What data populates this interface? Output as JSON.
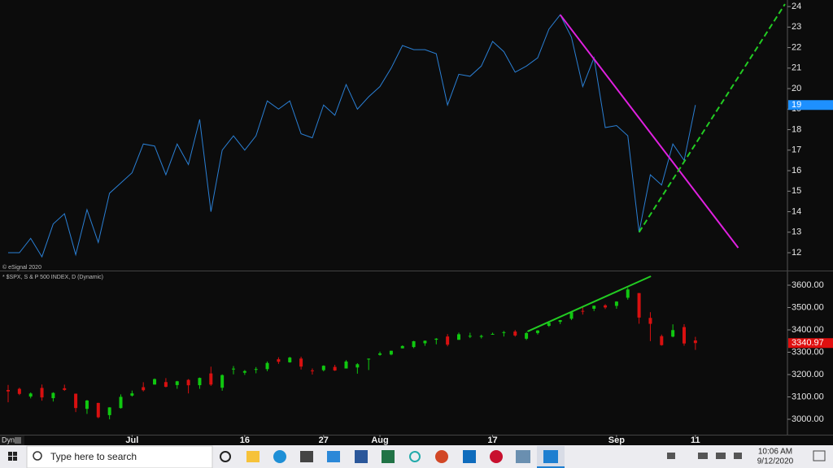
{
  "header": {
    "copyright": "© eSignal 2020",
    "legend": "* $SPX, S & P 500 INDEX, D (Dynamic)",
    "interval": "Dyn"
  },
  "chart_data": [
    {
      "type": "line",
      "categories": [
        null,
        null,
        null,
        null,
        null,
        null,
        null,
        null,
        null,
        null,
        null,
        null,
        null,
        null,
        null,
        null,
        null,
        null,
        null,
        null,
        null,
        null,
        null,
        null,
        null,
        null,
        null,
        null,
        null,
        null,
        null,
        null,
        null,
        null,
        null,
        null,
        null,
        null,
        null,
        null,
        null,
        null,
        null,
        null,
        null,
        null,
        null,
        null,
        null,
        null,
        null,
        null,
        null,
        null,
        null,
        null,
        null,
        null,
        null,
        null,
        null,
        null
      ],
      "series": [
        {
          "color": "#2a7fd4",
          "values": [
            12.0,
            12.0,
            12.7,
            11.8,
            13.4,
            13.9,
            11.9,
            14.1,
            12.5,
            14.9,
            15.4,
            15.9,
            17.3,
            17.2,
            15.8,
            17.3,
            16.3,
            18.5,
            14.0,
            17.0,
            17.7,
            17.0,
            17.7,
            19.4,
            19.0,
            19.4,
            17.8,
            17.6,
            19.2,
            18.7,
            20.2,
            19.0,
            19.6,
            20.1,
            21.0,
            22.1,
            21.9,
            21.9,
            21.7,
            19.2,
            20.7,
            20.6,
            21.1,
            22.3,
            21.8,
            20.8,
            21.1,
            21.5,
            22.9,
            23.6,
            22.5,
            20.1,
            21.5,
            18.1,
            18.2,
            17.7,
            13.0,
            15.8,
            15.3,
            17.3,
            16.5,
            19.2
          ]
        }
      ],
      "ylim": [
        11.13,
        24.32
      ],
      "yticks": [
        12,
        13,
        14,
        15,
        16,
        17,
        18,
        19,
        20,
        21,
        22,
        23,
        24
      ],
      "last_value": {
        "value": 19.2,
        "label": "19",
        "color": "#1e90ff"
      },
      "trendlines": [
        {
          "color": "#e020e0",
          "dashed": false,
          "x": [
            49,
            64.8
          ],
          "y": [
            23.6,
            12.24
          ]
        },
        {
          "color": "#22cc22",
          "dashed": true,
          "x": [
            56,
            68.95
          ],
          "y": [
            13.0,
            24.12
          ]
        }
      ]
    },
    {
      "type": "candlestick",
      "categories": [
        null,
        null,
        null,
        null,
        null,
        null,
        null,
        null,
        null,
        null,
        null,
        "Jul",
        null,
        null,
        null,
        null,
        null,
        null,
        null,
        null,
        null,
        "16",
        null,
        null,
        null,
        null,
        null,
        null,
        "27",
        null,
        null,
        null,
        null,
        "Aug",
        null,
        null,
        null,
        null,
        null,
        null,
        null,
        null,
        null,
        "17",
        null,
        null,
        null,
        null,
        null,
        null,
        null,
        null,
        null,
        null,
        "Sep",
        null,
        null,
        null,
        null,
        null,
        null,
        "11"
      ],
      "open": [
        3131.0,
        3136.1,
        3101.6,
        3140.3,
        3094.4,
        3138.7,
        3114.4,
        3046.6,
        3073.2,
        3018.6,
        3050.2,
        3105.9,
        3143.6,
        3155.3,
        3166.4,
        3153.1,
        3176.2,
        3152.5,
        3205.1,
        3141.1,
        3225.9,
        3208.4,
        3224.2,
        3224.3,
        3268.5,
        3254.9,
        3271.6,
        3218.6,
        3219.8,
        3234.3,
        3227.2,
        3231.8,
        3270.5,
        3288.3,
        3289.9,
        3317.4,
        3323.2,
        3340.1,
        3356.0,
        3370.3,
        3355.5,
        3372.9,
        3368.7,
        3380.9,
        3387.0,
        3392.5,
        3360.5,
        3386.0,
        3418.1,
        3435.9,
        3450.0,
        3485.1,
        3494.7,
        3509.7,
        3507.4,
        3543.8,
        3564.7,
        3453.6,
        3371.9,
        3369.8,
        3412.6,
        3352.7
      ],
      "high": [
        3153.5,
        3141.2,
        3120.0,
        3155.5,
        3120.9,
        3154.9,
        3115.0,
        3086.3,
        3073.7,
        3053.9,
        3111.5,
        3128.4,
        3165.8,
        3182.6,
        3184.2,
        3171.8,
        3179.8,
        3186.8,
        3235.3,
        3200.9,
        3238.3,
        3220.4,
        3233.5,
        3258.6,
        3277.3,
        3279.3,
        3279.9,
        3227.3,
        3241.4,
        3243.7,
        3264.7,
        3250.9,
        3272.2,
        3302.7,
        3306.8,
        3330.8,
        3351.0,
        3352.5,
        3363.3,
        3381.0,
        3387.9,
        3387.2,
        3378.5,
        3387.6,
        3395.1,
        3399.5,
        3390.8,
        3399.0,
        3432.1,
        3444.2,
        3481.1,
        3501.4,
        3509.2,
        3514.8,
        3528.0,
        3588.1,
        3564.9,
        3479.2,
        3379.0,
        3424.8,
        3425.6,
        3368.9
      ],
      "low": [
        3076.1,
        3108.0,
        3093.5,
        3083.1,
        3079.4,
        3127.1,
        3032.1,
        3024.0,
        3004.6,
        2999.7,
        3047.8,
        3101.5,
        3124.5,
        3155.3,
        3142.9,
        3136.5,
        3115.7,
        3136.2,
        3149.4,
        3127.7,
        3200.8,
        3198.6,
        3205.7,
        3215.2,
        3247.8,
        3253.1,
        3222.7,
        3200.1,
        3214.3,
        3216.2,
        3227.2,
        3204.1,
        3220.3,
        3284.5,
        3286.4,
        3317.4,
        3318.1,
        3328.7,
        3335.4,
        3326.4,
        3355.5,
        3363.4,
        3361.6,
        3379.2,
        3370.2,
        3369.7,
        3354.7,
        3379.3,
        3413.1,
        3425.8,
        3444.2,
        3468.4,
        3484.3,
        3493.3,
        3494.6,
        3535.2,
        3427.4,
        3349.6,
        3329.3,
        3366.8,
        3329.3,
        3310.5
      ],
      "close": [
        3124.7,
        3113.5,
        3115.3,
        3097.7,
        3117.9,
        3131.3,
        3050.3,
        3083.8,
        3009.1,
        3053.2,
        3100.3,
        3115.9,
        3130.0,
        3179.7,
        3145.3,
        3169.9,
        3152.1,
        3185.0,
        3155.2,
        3197.5,
        3226.6,
        3215.6,
        3224.7,
        3251.8,
        3257.3,
        3276.0,
        3235.7,
        3215.6,
        3239.4,
        3218.4,
        3258.4,
        3246.2,
        3271.1,
        3294.6,
        3306.5,
        3327.8,
        3349.2,
        3351.3,
        3360.5,
        3333.7,
        3380.4,
        3373.4,
        3372.9,
        3382.0,
        3389.8,
        3374.9,
        3385.5,
        3397.2,
        3431.3,
        3443.6,
        3478.7,
        3484.6,
        3508.0,
        3500.3,
        3526.7,
        3580.8,
        3455.1,
        3427.0,
        3331.8,
        3399.0,
        3339.2,
        3340.97
      ],
      "up_color": "#10c810",
      "down_color": "#d81010",
      "ylim": [
        2931,
        3654.5
      ],
      "yticks": [
        {
          "value": 3000,
          "label": "3000.00"
        },
        {
          "value": 3100,
          "label": "3100.00"
        },
        {
          "value": 3200,
          "label": "3200.00"
        },
        {
          "value": 3300,
          "label": "3300.00"
        },
        {
          "value": 3400,
          "label": "3400.00"
        },
        {
          "value": 3500,
          "label": "3500.00"
        },
        {
          "value": 3600,
          "label": "3600.00"
        }
      ],
      "last_value": {
        "value": 3340.97,
        "label": "3340.97",
        "color": "#e01010"
      },
      "trendlines": [
        {
          "color": "#22cc22",
          "dashed": false,
          "x": [
            46.1,
            57.05
          ],
          "y": [
            3393,
            3640
          ]
        }
      ]
    }
  ],
  "taskbar": {
    "search": "Type here to search",
    "time": "10:06 AM",
    "date": "9/12/2020"
  }
}
